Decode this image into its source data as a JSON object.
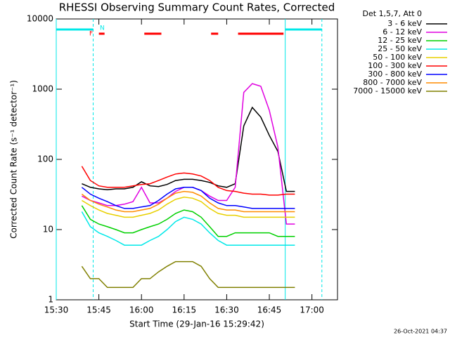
{
  "chart_data": {
    "type": "line",
    "title": "RHESSI Observing Summary Count Rates, Corrected",
    "xlabel": "Start Time (29-Jan-16 15:29:42)",
    "ylabel": "Corrected Count Rate (s⁻¹ detector⁻¹)",
    "legend_title": "Det 1,5,7, Att 0",
    "footer": "26-Oct-2021 04:37",
    "log_y": true,
    "xlim": [
      0,
      99
    ],
    "ylim": [
      1,
      10000
    ],
    "xticks": [
      {
        "value": 0,
        "label": "15:30"
      },
      {
        "value": 15,
        "label": "15:45"
      },
      {
        "value": 30,
        "label": "16:00"
      },
      {
        "value": 45,
        "label": "16:15"
      },
      {
        "value": 60,
        "label": "16:30"
      },
      {
        "value": 75,
        "label": "16:45"
      },
      {
        "value": 90,
        "label": "17:00"
      }
    ],
    "yticks": [
      1,
      10,
      100,
      1000,
      10000
    ],
    "x": [
      9,
      12,
      15,
      18,
      21,
      24,
      27,
      30,
      33,
      36,
      39,
      42,
      45,
      48,
      51,
      54,
      57,
      60,
      63,
      66,
      69,
      72,
      75,
      78,
      81,
      84
    ],
    "series": [
      {
        "name": "3 - 6 keV",
        "color": "#000000",
        "values": [
          45,
          40,
          38,
          37,
          38,
          38,
          40,
          48,
          42,
          41,
          44,
          50,
          52,
          52,
          50,
          47,
          42,
          40,
          45,
          300,
          550,
          400,
          220,
          130,
          35,
          35
        ]
      },
      {
        "name": "6 - 12 keV",
        "color": "#e000e0",
        "values": [
          30,
          26,
          24,
          22,
          22,
          23,
          25,
          40,
          24,
          24,
          28,
          35,
          40,
          40,
          36,
          30,
          26,
          26,
          40,
          900,
          1200,
          1100,
          500,
          150,
          12,
          12
        ]
      },
      {
        "name": "12 - 25 keV",
        "color": "#00d000",
        "values": [
          22,
          14,
          12,
          11,
          10,
          9,
          9,
          10,
          11,
          12,
          14,
          17,
          19,
          18,
          15,
          11,
          8,
          8,
          9,
          9,
          9,
          9,
          9,
          8,
          8,
          8
        ]
      },
      {
        "name": "25 - 50 keV",
        "color": "#00e8e8",
        "values": [
          18,
          11,
          9,
          8,
          7,
          6,
          6,
          6,
          7,
          8,
          10,
          13,
          15,
          14,
          12,
          9,
          7,
          6,
          6,
          6,
          6,
          6,
          6,
          6,
          6,
          6
        ]
      },
      {
        "name": "50 - 100 keV",
        "color": "#e8d000",
        "values": [
          26,
          22,
          19,
          17,
          16,
          15,
          15,
          16,
          17,
          19,
          23,
          27,
          29,
          28,
          25,
          20,
          17,
          16,
          16,
          15,
          15,
          15,
          15,
          15,
          15,
          15
        ]
      },
      {
        "name": "100 - 300 keV",
        "color": "#ff0000",
        "values": [
          80,
          50,
          42,
          40,
          40,
          40,
          42,
          44,
          45,
          50,
          56,
          62,
          64,
          62,
          58,
          50,
          40,
          36,
          35,
          33,
          32,
          32,
          31,
          31,
          32,
          32
        ]
      },
      {
        "name": "300 - 800 keV",
        "color": "#0000ff",
        "values": [
          40,
          32,
          28,
          25,
          22,
          20,
          20,
          21,
          22,
          26,
          32,
          38,
          40,
          40,
          36,
          28,
          24,
          22,
          22,
          21,
          20,
          20,
          20,
          20,
          20,
          20
        ]
      },
      {
        "name": "800 - 7000 keV",
        "color": "#ff8c00",
        "values": [
          32,
          26,
          23,
          21,
          19,
          18,
          18,
          19,
          20,
          23,
          28,
          33,
          35,
          34,
          30,
          24,
          20,
          19,
          19,
          18,
          18,
          18,
          18,
          18,
          18,
          18
        ]
      },
      {
        "name": "7000 - 15000 keV",
        "color": "#808000",
        "values": [
          3,
          2,
          2,
          1.5,
          1.5,
          1.5,
          1.5,
          2,
          2,
          2.5,
          3,
          3.5,
          3.5,
          3.5,
          3,
          2,
          1.5,
          1.5,
          1.5,
          1.5,
          1.5,
          1.5,
          1.5,
          1.5,
          1.5,
          1.5
        ]
      }
    ],
    "night": {
      "label": "N",
      "color": "#00e8e8",
      "intervals": [
        [
          0,
          13
        ],
        [
          80.6,
          93.5
        ]
      ]
    },
    "flare": {
      "label": "F",
      "color": "#ff0000",
      "intervals": [
        [
          15,
          17
        ],
        [
          31,
          37
        ],
        [
          54.5,
          57
        ],
        [
          64,
          80
        ]
      ]
    }
  }
}
